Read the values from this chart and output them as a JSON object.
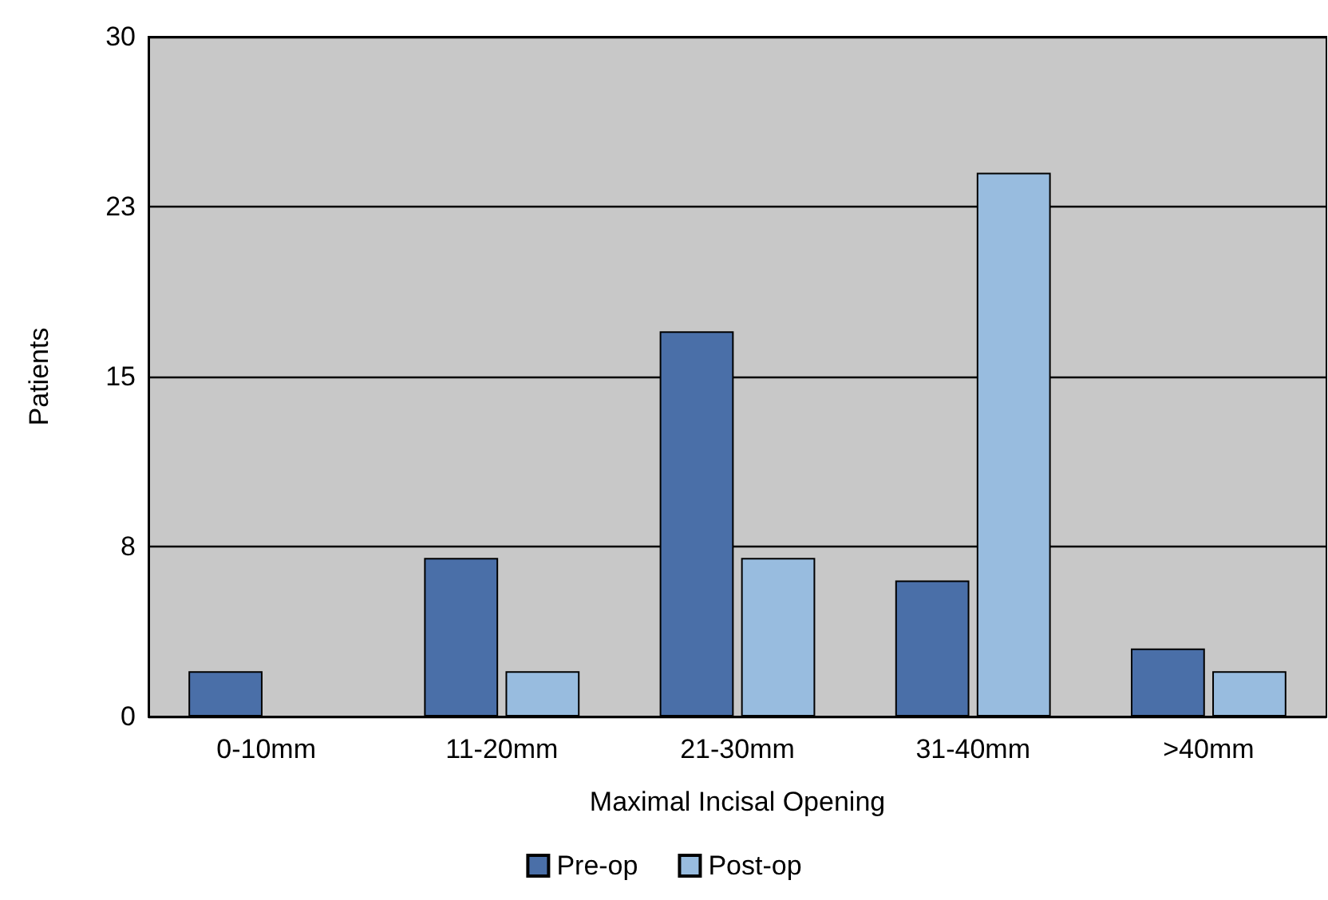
{
  "chart_data": {
    "type": "bar",
    "xlabel": "Maximal Incisal Opening",
    "ylabel": "Patients",
    "categories": [
      "0-10mm",
      "11-20mm",
      "21-30mm",
      "31-40mm",
      ">40mm"
    ],
    "series": [
      {
        "name": "Pre-op",
        "color": "#4a6fa8",
        "values": [
          2,
          7,
          17,
          6,
          3
        ]
      },
      {
        "name": "Post-op",
        "color": "#98bcdf",
        "values": [
          0,
          2,
          7,
          24,
          2
        ]
      }
    ],
    "ylim": [
      0,
      30
    ],
    "yticks": [
      0,
      {
        "value": 7.5,
        "label": "8"
      },
      15,
      {
        "value": 22.5,
        "label": "23"
      },
      30
    ],
    "grid": "y",
    "legend": "bottom"
  }
}
